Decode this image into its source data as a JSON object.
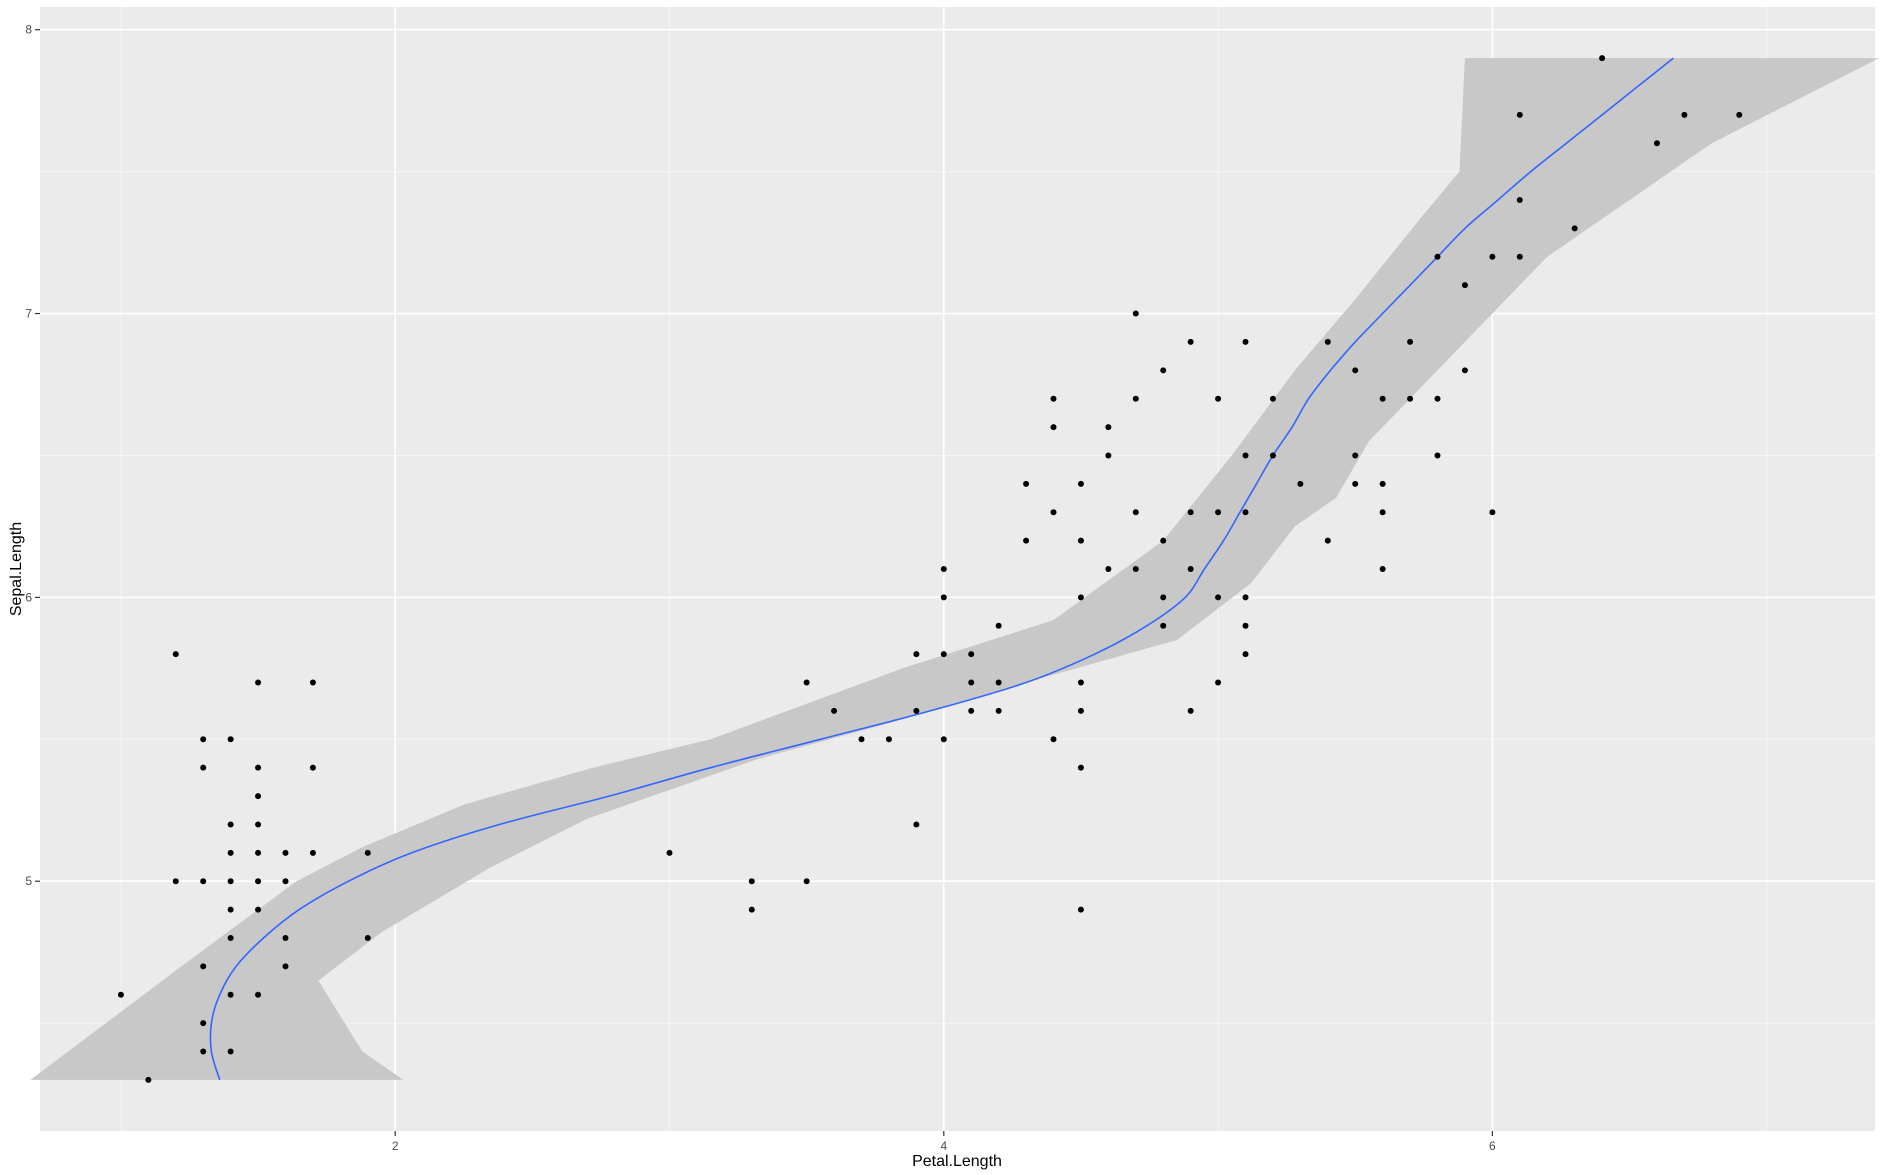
{
  "chart_data": {
    "type": "scatter",
    "xlabel": "Petal.Length",
    "ylabel": "Sepal.Length",
    "xlim": [
      0.705,
      7.395
    ],
    "ylim": [
      4.12,
      8.08
    ],
    "x_ticks": [
      2,
      4,
      6
    ],
    "y_ticks": [
      5,
      6,
      7,
      8
    ],
    "grid": true,
    "colors": {
      "panel_background": "#ebebeb",
      "grid_major": "#ffffff",
      "grid_minor": "#f5f5f5",
      "points": "#000000",
      "smooth_line": "#3366ff",
      "confidence_band": "#c8c8c8"
    },
    "series": [
      {
        "type": "scatter",
        "points": [
          [
            1.0,
            4.6
          ],
          [
            1.1,
            4.3
          ],
          [
            1.2,
            5.8
          ],
          [
            1.2,
            5.0
          ],
          [
            1.3,
            5.5
          ],
          [
            1.3,
            5.4
          ],
          [
            1.3,
            5.0
          ],
          [
            1.3,
            4.7
          ],
          [
            1.3,
            4.5
          ],
          [
            1.3,
            4.4
          ],
          [
            1.4,
            5.5
          ],
          [
            1.4,
            5.2
          ],
          [
            1.4,
            5.1
          ],
          [
            1.4,
            5.0
          ],
          [
            1.4,
            4.9
          ],
          [
            1.4,
            4.8
          ],
          [
            1.4,
            4.6
          ],
          [
            1.4,
            4.4
          ],
          [
            1.5,
            5.7
          ],
          [
            1.5,
            5.4
          ],
          [
            1.5,
            5.3
          ],
          [
            1.5,
            5.2
          ],
          [
            1.5,
            5.1
          ],
          [
            1.5,
            5.0
          ],
          [
            1.5,
            4.9
          ],
          [
            1.5,
            4.6
          ],
          [
            1.6,
            5.1
          ],
          [
            1.6,
            5.0
          ],
          [
            1.6,
            4.8
          ],
          [
            1.6,
            4.7
          ],
          [
            1.7,
            5.7
          ],
          [
            1.7,
            5.4
          ],
          [
            1.7,
            5.1
          ],
          [
            1.9,
            5.1
          ],
          [
            1.9,
            4.8
          ],
          [
            3.0,
            5.1
          ],
          [
            3.3,
            5.0
          ],
          [
            3.3,
            4.9
          ],
          [
            3.5,
            5.7
          ],
          [
            3.5,
            5.0
          ],
          [
            3.6,
            5.6
          ],
          [
            3.7,
            5.5
          ],
          [
            3.8,
            5.5
          ],
          [
            3.9,
            5.8
          ],
          [
            3.9,
            5.6
          ],
          [
            3.9,
            5.2
          ],
          [
            4.0,
            6.1
          ],
          [
            4.0,
            6.0
          ],
          [
            4.0,
            5.8
          ],
          [
            4.0,
            5.5
          ],
          [
            4.1,
            5.8
          ],
          [
            4.1,
            5.7
          ],
          [
            4.1,
            5.6
          ],
          [
            4.2,
            5.9
          ],
          [
            4.2,
            5.7
          ],
          [
            4.2,
            5.6
          ],
          [
            4.3,
            6.4
          ],
          [
            4.3,
            6.2
          ],
          [
            4.4,
            6.7
          ],
          [
            4.4,
            6.6
          ],
          [
            4.4,
            6.3
          ],
          [
            4.4,
            5.5
          ],
          [
            4.5,
            6.4
          ],
          [
            4.5,
            6.2
          ],
          [
            4.5,
            6.0
          ],
          [
            4.5,
            5.7
          ],
          [
            4.5,
            5.6
          ],
          [
            4.5,
            5.4
          ],
          [
            4.5,
            4.9
          ],
          [
            4.6,
            6.6
          ],
          [
            4.6,
            6.5
          ],
          [
            4.6,
            6.1
          ],
          [
            4.7,
            7.0
          ],
          [
            4.7,
            6.7
          ],
          [
            4.7,
            6.3
          ],
          [
            4.7,
            6.1
          ],
          [
            4.8,
            6.8
          ],
          [
            4.8,
            6.2
          ],
          [
            4.8,
            6.0
          ],
          [
            4.8,
            5.9
          ],
          [
            4.9,
            6.9
          ],
          [
            4.9,
            6.3
          ],
          [
            4.9,
            6.1
          ],
          [
            4.9,
            5.6
          ],
          [
            5.0,
            6.7
          ],
          [
            5.0,
            6.3
          ],
          [
            5.0,
            6.0
          ],
          [
            5.0,
            5.7
          ],
          [
            5.1,
            6.9
          ],
          [
            5.1,
            6.5
          ],
          [
            5.1,
            6.3
          ],
          [
            5.1,
            6.0
          ],
          [
            5.1,
            5.9
          ],
          [
            5.1,
            5.8
          ],
          [
            5.2,
            6.7
          ],
          [
            5.2,
            6.5
          ],
          [
            5.3,
            6.4
          ],
          [
            5.4,
            6.9
          ],
          [
            5.4,
            6.2
          ],
          [
            5.5,
            6.8
          ],
          [
            5.5,
            6.5
          ],
          [
            5.5,
            6.4
          ],
          [
            5.6,
            6.7
          ],
          [
            5.6,
            6.4
          ],
          [
            5.6,
            6.3
          ],
          [
            5.6,
            6.1
          ],
          [
            5.7,
            6.9
          ],
          [
            5.7,
            6.7
          ],
          [
            5.8,
            7.2
          ],
          [
            5.8,
            6.7
          ],
          [
            5.8,
            6.5
          ],
          [
            5.9,
            7.1
          ],
          [
            5.9,
            6.8
          ],
          [
            6.0,
            7.2
          ],
          [
            6.0,
            6.3
          ],
          [
            6.1,
            7.7
          ],
          [
            6.1,
            7.4
          ],
          [
            6.1,
            7.2
          ],
          [
            6.3,
            7.3
          ],
          [
            6.4,
            7.9
          ],
          [
            6.6,
            7.6
          ],
          [
            6.7,
            7.7
          ],
          [
            6.9,
            7.7
          ]
        ]
      },
      {
        "type": "smooth",
        "method": "loess",
        "fit": [
          [
            1.36,
            4.3
          ],
          [
            1.33,
            4.4
          ],
          [
            1.33,
            4.5
          ],
          [
            1.36,
            4.6
          ],
          [
            1.42,
            4.7
          ],
          [
            1.52,
            4.8
          ],
          [
            1.65,
            4.9
          ],
          [
            1.83,
            5.0
          ],
          [
            2.06,
            5.1
          ],
          [
            2.38,
            5.2
          ],
          [
            2.78,
            5.3
          ],
          [
            3.15,
            5.4
          ],
          [
            3.55,
            5.5
          ],
          [
            3.95,
            5.6
          ],
          [
            4.3,
            5.7
          ],
          [
            4.55,
            5.8
          ],
          [
            4.74,
            5.9
          ],
          [
            4.88,
            6.0
          ],
          [
            4.95,
            6.1
          ],
          [
            5.02,
            6.2
          ],
          [
            5.08,
            6.3
          ],
          [
            5.14,
            6.4
          ],
          [
            5.2,
            6.5
          ],
          [
            5.27,
            6.6
          ],
          [
            5.33,
            6.7
          ],
          [
            5.41,
            6.8
          ],
          [
            5.5,
            6.9
          ],
          [
            5.6,
            7.0
          ],
          [
            5.7,
            7.1
          ],
          [
            5.8,
            7.2
          ],
          [
            5.9,
            7.3
          ],
          [
            6.02,
            7.4
          ],
          [
            6.14,
            7.5
          ],
          [
            6.27,
            7.6
          ],
          [
            6.4,
            7.7
          ],
          [
            6.53,
            7.8
          ],
          [
            6.66,
            7.9
          ]
        ],
        "band_upper": [
          [
            0.67,
            4.3
          ],
          [
            1.22,
            4.7
          ],
          [
            1.64,
            5.0
          ],
          [
            1.88,
            5.12
          ],
          [
            2.25,
            5.27
          ],
          [
            2.72,
            5.4
          ],
          [
            3.15,
            5.5
          ],
          [
            3.85,
            5.75
          ],
          [
            4.4,
            5.92
          ],
          [
            4.8,
            6.2
          ],
          [
            5.05,
            6.5
          ],
          [
            5.28,
            6.8
          ],
          [
            5.5,
            7.05
          ],
          [
            5.75,
            7.35
          ],
          [
            5.88,
            7.5
          ],
          [
            5.9,
            7.9
          ]
        ],
        "band_lower": [
          [
            7.41,
            7.9
          ],
          [
            6.8,
            7.6
          ],
          [
            6.2,
            7.2
          ],
          [
            5.9,
            6.9
          ],
          [
            5.55,
            6.55
          ],
          [
            5.43,
            6.35
          ],
          [
            5.28,
            6.25
          ],
          [
            5.12,
            6.05
          ],
          [
            4.85,
            5.85
          ],
          [
            4.3,
            5.7
          ],
          [
            3.85,
            5.57
          ],
          [
            3.32,
            5.43
          ],
          [
            2.7,
            5.22
          ],
          [
            2.35,
            5.05
          ],
          [
            1.95,
            4.82
          ],
          [
            1.72,
            4.65
          ],
          [
            1.88,
            4.4
          ],
          [
            2.03,
            4.3
          ]
        ]
      }
    ]
  }
}
